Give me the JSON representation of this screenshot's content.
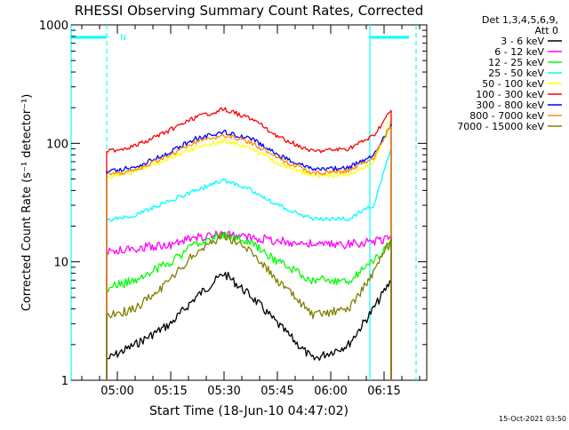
{
  "chart_data": {
    "type": "line",
    "title": "RHESSI Observing Summary Count Rates, Corrected",
    "xlabel": "Start Time (18-Jun-10 04:47:02)",
    "ylabel": "Corrected Count Rate (s⁻¹ detector⁻¹)",
    "y_scale": "log",
    "ylim": [
      1,
      1000
    ],
    "y_ticks": [
      {
        "value": 1,
        "label": "1"
      },
      {
        "value": 10,
        "label": "10"
      },
      {
        "value": 100,
        "label": "100"
      },
      {
        "value": 1000,
        "label": "1000"
      }
    ],
    "x_range": [
      "04:47",
      "06:27"
    ],
    "x_ticks": [
      "05:00",
      "05:15",
      "05:30",
      "05:45",
      "06:00",
      "06:15"
    ],
    "legend_header": [
      "Det 1,3,4,5,6,9,",
      "Att 0"
    ],
    "legend_position": "right",
    "annotations": [
      {
        "text": "N",
        "x": "05:00"
      }
    ],
    "markers": {
      "solid_lines": [
        "04:47",
        "06:11"
      ],
      "dashed_lines": [
        "04:57",
        "06:24"
      ],
      "bars": [
        {
          "from": "04:47",
          "to": "04:57"
        },
        {
          "from": "06:11",
          "to": "06:22"
        }
      ]
    },
    "series": [
      {
        "name": "3 - 6 keV",
        "color": "#000000",
        "x": [
          "04:57",
          "05:05",
          "05:15",
          "05:22",
          "05:30",
          "05:38",
          "05:45",
          "05:55",
          "06:05",
          "06:12",
          "06:17"
        ],
        "values": [
          1.5,
          2,
          3,
          5,
          8,
          5,
          3,
          1.5,
          2,
          4,
          7
        ]
      },
      {
        "name": "6 - 12 keV",
        "color": "#ff00ff",
        "x": [
          "04:57",
          "05:05",
          "05:15",
          "05:22",
          "05:30",
          "05:38",
          "05:45",
          "05:55",
          "06:05",
          "06:12",
          "06:17"
        ],
        "values": [
          12,
          13,
          14,
          16,
          17,
          16,
          15,
          14,
          14,
          15,
          16
        ]
      },
      {
        "name": "12 - 25 keV",
        "color": "#00ff00",
        "x": [
          "04:57",
          "05:05",
          "05:15",
          "05:22",
          "05:30",
          "05:38",
          "05:45",
          "05:55",
          "06:05",
          "06:12",
          "06:17"
        ],
        "values": [
          6,
          7,
          10,
          14,
          17,
          14,
          10,
          7,
          7,
          10,
          15
        ]
      },
      {
        "name": "25 - 50 keV",
        "color": "#00ffff",
        "x": [
          "04:57",
          "05:05",
          "05:15",
          "05:22",
          "05:30",
          "05:38",
          "05:45",
          "05:55",
          "06:05",
          "06:12",
          "06:17"
        ],
        "values": [
          22,
          25,
          33,
          40,
          49,
          40,
          30,
          23,
          23,
          30,
          90
        ]
      },
      {
        "name": "50 - 100 keV",
        "color": "#ffff00",
        "x": [
          "04:57",
          "05:05",
          "05:15",
          "05:22",
          "05:30",
          "05:38",
          "05:45",
          "05:55",
          "06:05",
          "06:12",
          "06:17"
        ],
        "values": [
          52,
          58,
          75,
          92,
          105,
          90,
          68,
          53,
          55,
          68,
          160
        ]
      },
      {
        "name": "100 - 300 keV",
        "color": "#ff0000",
        "x": [
          "04:57",
          "05:05",
          "05:15",
          "05:22",
          "05:30",
          "05:38",
          "05:45",
          "05:55",
          "06:05",
          "06:12",
          "06:17"
        ],
        "values": [
          85,
          95,
          130,
          165,
          195,
          160,
          115,
          85,
          90,
          115,
          190
        ]
      },
      {
        "name": "300 - 800 keV",
        "color": "#0000ff",
        "x": [
          "04:57",
          "05:05",
          "05:15",
          "05:22",
          "05:30",
          "05:38",
          "05:45",
          "05:55",
          "06:05",
          "06:12",
          "06:17"
        ],
        "values": [
          58,
          63,
          85,
          110,
          125,
          108,
          80,
          60,
          62,
          80,
          140
        ]
      },
      {
        "name": "800 - 7000 keV",
        "color": "#ff8c00",
        "x": [
          "04:57",
          "05:05",
          "05:15",
          "05:22",
          "05:30",
          "05:38",
          "05:45",
          "05:55",
          "06:05",
          "06:12",
          "06:17"
        ],
        "values": [
          54,
          59,
          80,
          103,
          118,
          100,
          75,
          56,
          58,
          75,
          140
        ]
      },
      {
        "name": "7000 - 15000 keV",
        "color": "#808000",
        "x": [
          "04:57",
          "05:05",
          "05:15",
          "05:22",
          "05:30",
          "05:38",
          "05:45",
          "05:55",
          "06:05",
          "06:12",
          "06:17"
        ],
        "values": [
          3.5,
          4,
          7,
          12,
          17,
          12,
          7,
          3.5,
          4,
          8,
          15
        ]
      }
    ]
  },
  "footer": {
    "timestamp": "15-Oct-2021 03:50"
  }
}
